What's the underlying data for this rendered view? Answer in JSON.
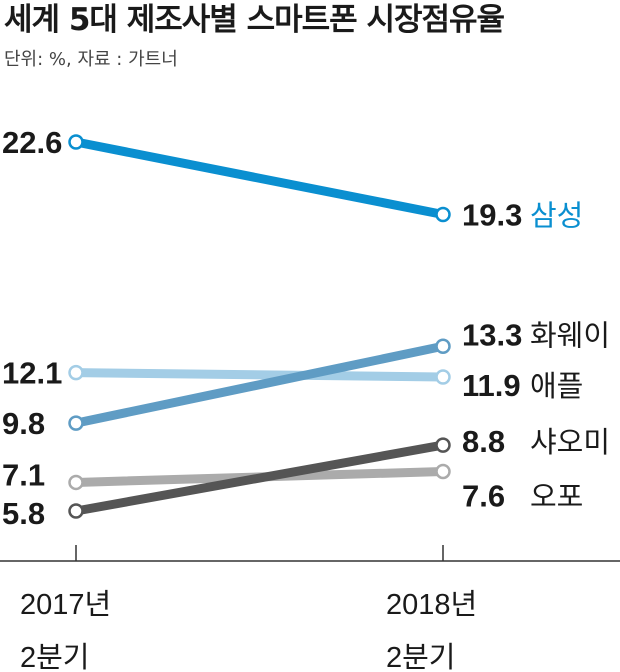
{
  "title": "세계 5대 제조사별 스마트폰 시장점유율",
  "subtitle": "단위: %, 자료 : 가트너",
  "chart_data": {
    "type": "line",
    "title": "세계 5대 제조사별 스마트폰 시장점유율",
    "unit_note": "단위: %, 자료 : 가트너",
    "categories": [
      [
        "2017년",
        "2분기"
      ],
      [
        "2018년",
        "2분기"
      ]
    ],
    "series": [
      {
        "name": "삼성",
        "values": [
          22.6,
          19.3
        ],
        "color": "#0a8fd0"
      },
      {
        "name": "화웨이",
        "values": [
          9.8,
          13.3
        ],
        "color": "#5f9cc4"
      },
      {
        "name": "애플",
        "values": [
          12.1,
          11.9
        ],
        "color": "#a3cde6"
      },
      {
        "name": "샤오미",
        "values": [
          5.8,
          8.8
        ],
        "color": "#555555"
      },
      {
        "name": "오포",
        "values": [
          7.1,
          7.6
        ],
        "color": "#ababab"
      }
    ],
    "ylim": [
      5.8,
      22.6
    ],
    "grid": false,
    "legend": "direct labels at right"
  }
}
